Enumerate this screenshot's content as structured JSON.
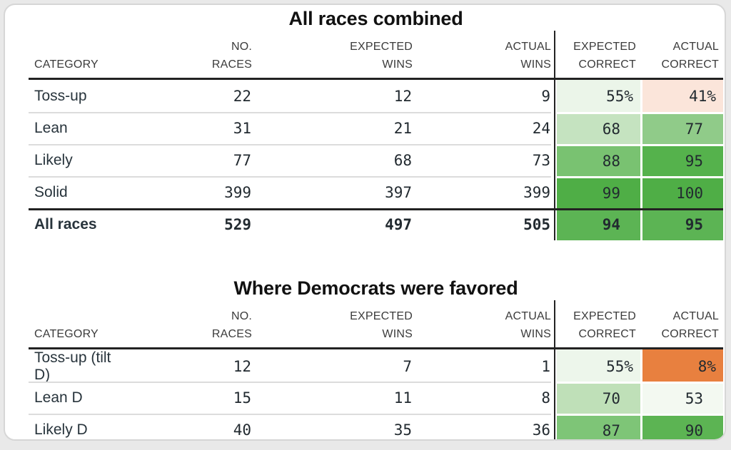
{
  "page": {
    "background": "#e9e9e9",
    "card_background": "#ffffff",
    "card_border_color": "#d6d6d6",
    "rule_color": "#222222",
    "row_separator_color": "#dcdcdc",
    "divider_color": "#232323"
  },
  "chart_data": [
    {
      "type": "table",
      "title": "All races combined",
      "columns": [
        "CATEGORY",
        "NO. RACES",
        "EXPECTED WINS",
        "ACTUAL WINS",
        "EXPECTED CORRECT",
        "ACTUAL CORRECT"
      ],
      "column_headers": [
        [
          "",
          "CATEGORY"
        ],
        [
          "NO.",
          "RACES"
        ],
        [
          "EXPECTED",
          "WINS"
        ],
        [
          "ACTUAL",
          "WINS"
        ],
        [
          "EXPECTED",
          "CORRECT"
        ],
        [
          "ACTUAL",
          "CORRECT"
        ]
      ],
      "rows": [
        {
          "category": "Toss-up",
          "no_races": "22",
          "expected_wins": "12",
          "actual_wins": "9",
          "expected_correct": "55%",
          "actual_correct": "41%",
          "expected_correct_color": "#ebf5e9",
          "actual_correct_color": "#fbe5da",
          "bold": false
        },
        {
          "category": "Lean",
          "no_races": "31",
          "expected_wins": "21",
          "actual_wins": "24",
          "expected_correct": "68",
          "actual_correct": "77",
          "expected_correct_color": "#c5e3c0",
          "actual_correct_color": "#90cb89",
          "bold": false
        },
        {
          "category": "Likely",
          "no_races": "77",
          "expected_wins": "68",
          "actual_wins": "73",
          "expected_correct": "88",
          "actual_correct": "95",
          "expected_correct_color": "#79c271",
          "actual_correct_color": "#55b24c",
          "bold": false
        },
        {
          "category": "Solid",
          "no_races": "399",
          "expected_wins": "397",
          "actual_wins": "399",
          "expected_correct": "99",
          "actual_correct": "100",
          "expected_correct_color": "#4fae46",
          "actual_correct_color": "#4fae46",
          "bold": false
        },
        {
          "category": "All races",
          "no_races": "529",
          "expected_wins": "497",
          "actual_wins": "505",
          "expected_correct": "94",
          "actual_correct": "95",
          "expected_correct_color": "#5cb454",
          "actual_correct_color": "#5cb454",
          "bold": true
        }
      ]
    },
    {
      "type": "table",
      "title": "Where Democrats were favored",
      "columns": [
        "CATEGORY",
        "NO. RACES",
        "EXPECTED WINS",
        "ACTUAL WINS",
        "EXPECTED CORRECT",
        "ACTUAL CORRECT"
      ],
      "column_headers": [
        [
          "",
          "CATEGORY"
        ],
        [
          "NO.",
          "RACES"
        ],
        [
          "EXPECTED",
          "WINS"
        ],
        [
          "ACTUAL",
          "WINS"
        ],
        [
          "EXPECTED",
          "CORRECT"
        ],
        [
          "ACTUAL",
          "CORRECT"
        ]
      ],
      "rows": [
        {
          "category": "Toss-up (tilt D)",
          "no_races": "12",
          "expected_wins": "7",
          "actual_wins": "1",
          "expected_correct": "55%",
          "actual_correct": "8%",
          "expected_correct_color": "#edf6eb",
          "actual_correct_color": "#e8803f",
          "bold": false
        },
        {
          "category": "Lean D",
          "no_races": "15",
          "expected_wins": "11",
          "actual_wins": "8",
          "expected_correct": "70",
          "actual_correct": "53",
          "expected_correct_color": "#bfe0b8",
          "actual_correct_color": "#f3f9f1",
          "bold": false
        },
        {
          "category": "Likely D",
          "no_races": "40",
          "expected_wins": "35",
          "actual_wins": "36",
          "expected_correct": "87",
          "actual_correct": "90",
          "expected_correct_color": "#7ec577",
          "actual_correct_color": "#5cb453",
          "bold": false
        }
      ]
    }
  ]
}
